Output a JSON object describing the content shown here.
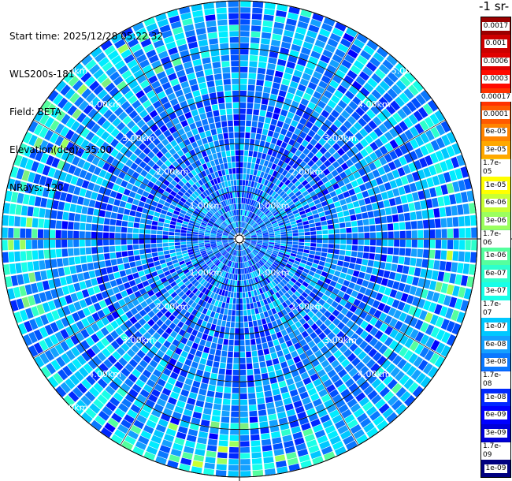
{
  "info": {
    "start_time": "Start time: 2025/12/28 05:22:32",
    "device": "WLS200s-181",
    "field": "Field: BETA",
    "elevation": "Elevation(deg): 35.00",
    "nrays": "NRays: 120"
  },
  "colorbar": {
    "title": "-1 sr-",
    "labels": [
      "0.0017",
      "0.001",
      "0.0006",
      "0.0003",
      "0.00017",
      "0.0001",
      "6e-05",
      "3e-05",
      "1.7e-05",
      "1e-05",
      "6e-06",
      "3e-06",
      "1.7e-06",
      "1e-06",
      "6e-07",
      "3e-07",
      "1.7e-07",
      "1e-07",
      "6e-08",
      "3e-08",
      "1.7e-08",
      "1e-08",
      "6e-09",
      "3e-09",
      "1.7e-09",
      "1e-09"
    ],
    "colors": [
      "#9b0000",
      "#cc0000",
      "#e00000",
      "#ff0a00",
      "#ff3300",
      "#ff5a00",
      "#ff8400",
      "#ffa800",
      "#ffd000",
      "#ffff00",
      "#c8ff33",
      "#9bff5e",
      "#7ef07e",
      "#55ff9e",
      "#2dffcc",
      "#19ffe8",
      "#00ecff",
      "#00c8ff",
      "#14a0ff",
      "#0a78ff",
      "#0050ff",
      "#0028ff",
      "#0000ff",
      "#0000d8",
      "#0000a8",
      "#000080"
    ]
  },
  "chart_data": {
    "type": "heatmap",
    "subtype": "polar-ppi",
    "n_rays": 120,
    "max_range_km": 5.0,
    "range_rings_km": [
      1.0,
      2.0,
      3.0,
      4.0,
      5.0
    ],
    "ring_labels": [
      "1.00km",
      "2.00km",
      "3.00km",
      "4.00km",
      "5.00km"
    ],
    "quantity": "BETA",
    "colorscale": "log",
    "vmin": 1e-09,
    "vmax": 0.0017,
    "dominant_value_range": [
      3e-08,
      1e-07
    ],
    "near_edge_value_range": [
      1e-07,
      1e-05
    ]
  }
}
